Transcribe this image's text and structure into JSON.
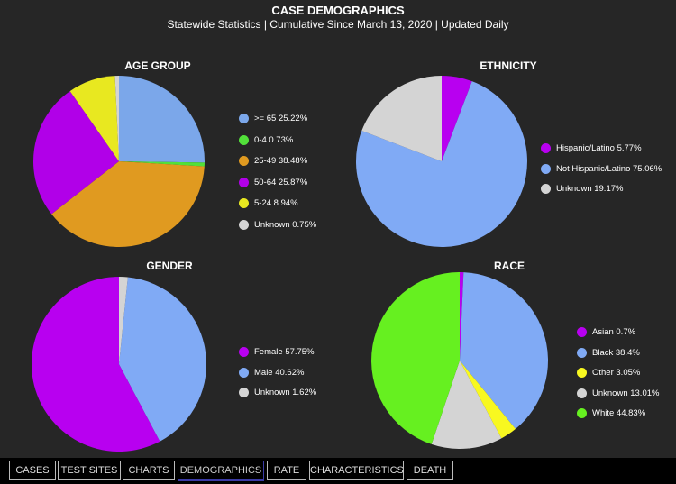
{
  "header": {
    "title": "CASE DEMOGRAPHICS",
    "subtitle": "Statewide Statistics  |  Cumulative Since March 13, 2020  |  Updated Daily"
  },
  "chart_data": [
    {
      "type": "pie",
      "title": "AGE GROUP",
      "slices": [
        {
          "label": ">= 65",
          "value": 25.22,
          "value_label": "25.22%",
          "color": "#7ba7ea"
        },
        {
          "label": "0-4",
          "value": 0.73,
          "value_label": "0.73%",
          "color": "#52e03a"
        },
        {
          "label": "25-49",
          "value": 38.48,
          "value_label": "38.48%",
          "color": "#e09a20"
        },
        {
          "label": "50-64",
          "value": 25.87,
          "value_label": "25.87%",
          "color": "#b100e8"
        },
        {
          "label": "5-24",
          "value": 8.94,
          "value_label": "8.94%",
          "color": "#e8e820"
        },
        {
          "label": "Unknown",
          "value": 0.75,
          "value_label": "0.75%",
          "color": "#d4d4d4"
        }
      ]
    },
    {
      "type": "pie",
      "title": "ETHNICITY",
      "slices": [
        {
          "label": "Hispanic/Latino",
          "value": 5.77,
          "value_label": "5.77%",
          "color": "#b800f0"
        },
        {
          "label": "Not Hispanic/Latino",
          "value": 75.06,
          "value_label": "75.06%",
          "color": "#80aaf5"
        },
        {
          "label": "Unknown",
          "value": 19.17,
          "value_label": "19.17%",
          "color": "#d4d4d4"
        }
      ]
    },
    {
      "type": "pie",
      "title": "GENDER",
      "slices": [
        {
          "label": "Female",
          "value": 57.75,
          "value_label": "57.75%",
          "color": "#b800f0"
        },
        {
          "label": "Male",
          "value": 40.62,
          "value_label": "40.62%",
          "color": "#80aaf5"
        },
        {
          "label": "Unknown",
          "value": 1.62,
          "value_label": "1.62%",
          "color": "#d4d4d4"
        }
      ]
    },
    {
      "type": "pie",
      "title": "RACE",
      "slices": [
        {
          "label": "Asian",
          "value": 0.7,
          "value_label": "0.7%",
          "color": "#b800f0"
        },
        {
          "label": "Black",
          "value": 38.4,
          "value_label": "38.4%",
          "color": "#80aaf5"
        },
        {
          "label": "Other",
          "value": 3.05,
          "value_label": "3.05%",
          "color": "#f8f820"
        },
        {
          "label": "Unknown",
          "value": 13.01,
          "value_label": "13.01%",
          "color": "#d4d4d4"
        },
        {
          "label": "White",
          "value": 44.83,
          "value_label": "44.83%",
          "color": "#66f020"
        }
      ]
    }
  ],
  "tabs": [
    {
      "label": "CASES"
    },
    {
      "label": "TEST SITES"
    },
    {
      "label": "CHARTS"
    },
    {
      "label": "DEMOGRAPHICS",
      "active": true
    },
    {
      "label": "RATE"
    },
    {
      "label": "CHARACTERISTICS"
    },
    {
      "label": "DEATH"
    }
  ]
}
